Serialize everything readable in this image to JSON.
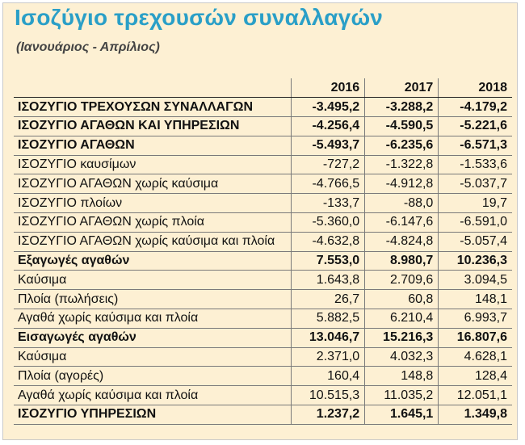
{
  "title": "Ισοζύγιο τρεχουσών συναλλαγών",
  "subtitle": "(Ιανουάριος - Απρίλιος)",
  "colors": {
    "background": "#fdf0d3",
    "title": "#2a9fc7",
    "gridline": "#7a7a7a"
  },
  "table": {
    "headers": [
      "",
      "2016",
      "2017",
      "2018"
    ],
    "rows": [
      {
        "label": "ΙΣΟΖΥΓΙΟ ΤΡΕΧΟΥΣΩΝ ΣΥΝΑΛΛΑΓΩΝ",
        "bold": true,
        "values": [
          "-3.495,2",
          "-3.288,2",
          "-4.179,2"
        ]
      },
      {
        "label": "ΙΣΟΖΥΓΙΟ ΑΓΑΘΩΝ ΚΑΙ ΥΠΗΡΕΣΙΩΝ",
        "bold": true,
        "values": [
          "-4.256,4",
          "-4.590,5",
          "-5.221,6"
        ]
      },
      {
        "label": "ΙΣΟΖΥΓΙΟ ΑΓΑΘΩΝ",
        "bold": true,
        "values": [
          "-5.493,7",
          "-6.235,6",
          "-6.571,3"
        ]
      },
      {
        "label": "ΙΣΟΖΥΓΙΟ  καυσίμων",
        "bold": false,
        "values": [
          "-727,2",
          "-1.322,8",
          "-1.533,6"
        ]
      },
      {
        "label": "ΙΣΟΖΥΓΙΟ ΑΓΑΘΩΝ χωρίς καύσιμα",
        "bold": false,
        "values": [
          "-4.766,5",
          "-4.912,8",
          "-5.037,7"
        ]
      },
      {
        "label": "ΙΣΟΖΥΓΙΟ  πλοίων",
        "bold": false,
        "values": [
          "-133,7",
          "-88,0",
          "19,7"
        ]
      },
      {
        "label": "ΙΣΟΖΥΓΙΟ ΑΓΑΘΩΝ χωρίς πλοία",
        "bold": false,
        "values": [
          "-5.360,0",
          "-6.147,6",
          "-6.591,0"
        ]
      },
      {
        "label": "ΙΣΟΖΥΓΙΟ ΑΓΑΘΩΝ χωρίς καύσιμα και πλοία",
        "bold": false,
        "values": [
          "-4.632,8",
          "-4.824,8",
          "-5.057,4"
        ]
      },
      {
        "label": "Εξαγωγές αγαθών",
        "bold": true,
        "values": [
          "7.553,0",
          "8.980,7",
          "10.236,3"
        ]
      },
      {
        "label": "Καύσιμα",
        "bold": false,
        "values": [
          "1.643,8",
          "2.709,6",
          "3.094,5"
        ]
      },
      {
        "label": "Πλοία (πωλήσεις)",
        "bold": false,
        "values": [
          "26,7",
          "60,8",
          "148,1"
        ]
      },
      {
        "label": "Αγαθά χωρίς καύσιμα και πλοία",
        "bold": false,
        "values": [
          "5.882,5",
          "6.210,4",
          "6.993,7"
        ]
      },
      {
        "label": "Εισαγωγές αγαθών",
        "bold": true,
        "values": [
          "13.046,7",
          "15.216,3",
          "16.807,6"
        ]
      },
      {
        "label": "Καύσιμα",
        "bold": false,
        "values": [
          "2.371,0",
          "4.032,3",
          "4.628,1"
        ]
      },
      {
        "label": "Πλοία (αγορές)",
        "bold": false,
        "values": [
          "160,4",
          "148,8",
          "128,4"
        ]
      },
      {
        "label": "Αγαθά χωρίς καύσιμα και πλοία",
        "bold": false,
        "values": [
          "10.515,3",
          "11.035,2",
          "12.051,1"
        ]
      },
      {
        "label": "ΙΣΟΖΥΓΙΟ ΥΠΗΡΕΣΙΩΝ",
        "bold": true,
        "values": [
          "1.237,2",
          "1.645,1",
          "1.349,8"
        ]
      }
    ]
  }
}
